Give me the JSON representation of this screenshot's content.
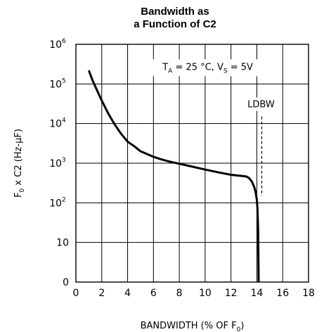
{
  "chart_data": {
    "type": "line",
    "title_line1": "Bandwidth as",
    "title_line2": "a Function of C2",
    "xlabel": "BANDWIDTH (% OF F",
    "xlabel_sub": "0",
    "xlabel_close": ")",
    "ylabel": "F",
    "ylabel_sub": "0",
    "ylabel_rest": " x C2 (Hz-μF)",
    "xlim": [
      0,
      18
    ],
    "x_ticks": [
      "0",
      "2",
      "4",
      "6",
      "8",
      "10",
      "12",
      "14",
      "16",
      "18"
    ],
    "y_scale": "log",
    "ylim": [
      1,
      1000000
    ],
    "y_ticks": [
      {
        "label": "0",
        "exp": ""
      },
      {
        "label": "10",
        "exp": ""
      },
      {
        "label": "10",
        "exp": "2"
      },
      {
        "label": "10",
        "exp": "3"
      },
      {
        "label": "10",
        "exp": "4"
      },
      {
        "label": "10",
        "exp": "5"
      },
      {
        "label": "10",
        "exp": "6"
      }
    ],
    "grid": true,
    "annotation": {
      "t_prefix": "T",
      "t_sub": "A",
      "t_mid": " = 25 °C, V",
      "v_sub": "S",
      "v_rest": " = 5V"
    },
    "ldbw": {
      "label": "LDBW",
      "x": 14.0,
      "y_range": [
        150,
        15000
      ]
    },
    "series": [
      {
        "x": [
          1.0,
          1.3,
          1.7,
          2.0,
          2.5,
          3.0,
          3.5,
          4.0,
          4.5,
          5.0,
          5.5,
          6.0,
          6.5,
          7.0,
          7.5,
          8.0,
          9.0,
          10.0,
          11.0,
          12.0,
          12.5,
          12.9,
          13.2,
          13.4,
          13.6,
          13.8,
          13.9,
          14.0,
          14.05,
          14.1,
          14.12,
          14.14
        ],
        "y": [
          220000,
          120000,
          62000,
          38000,
          18000,
          9500,
          5500,
          3500,
          2700,
          2000,
          1700,
          1450,
          1280,
          1150,
          1050,
          970,
          820,
          690,
          590,
          510,
          490,
          475,
          460,
          420,
          350,
          250,
          190,
          120,
          70,
          20,
          5,
          1
        ]
      }
    ]
  }
}
